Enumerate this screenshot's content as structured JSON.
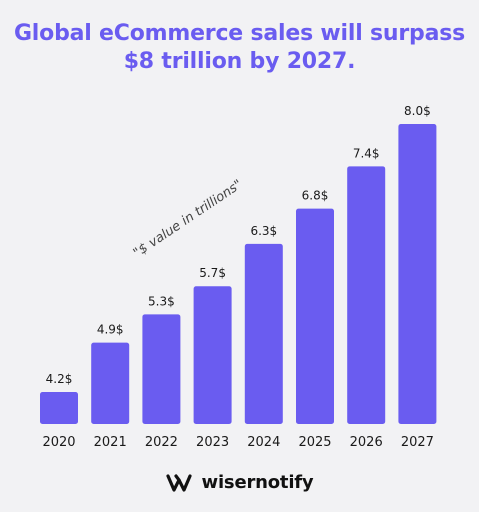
{
  "title_line1": "Global eCommerce sales will surpass",
  "title_line2": "$8 trillion by 2027.",
  "annotation": "\"$ value in trillions\"",
  "brand": {
    "name": "wisernotify",
    "icon": "wisernotify-logo-icon"
  },
  "colors": {
    "bar": "#6a5cf0",
    "title": "#6a5cf0",
    "text": "#1a1a1a",
    "background": "#f2f2f4"
  },
  "chart_data": {
    "type": "bar",
    "title": "Global eCommerce sales will surpass $8 trillion by 2027.",
    "xlabel": "",
    "ylabel": "",
    "categories": [
      "2020",
      "2021",
      "2022",
      "2023",
      "2024",
      "2025",
      "2026",
      "2027"
    ],
    "values": [
      4.2,
      4.9,
      5.3,
      5.7,
      6.3,
      6.8,
      7.4,
      8.0
    ],
    "data_labels": [
      "4.2$",
      "4.9$",
      "5.3$",
      "5.7$",
      "6.3$",
      "6.8$",
      "7.4$",
      "8.0$"
    ],
    "annotation": "\"$ value in trillions\"",
    "grid": false,
    "legend": "none"
  }
}
